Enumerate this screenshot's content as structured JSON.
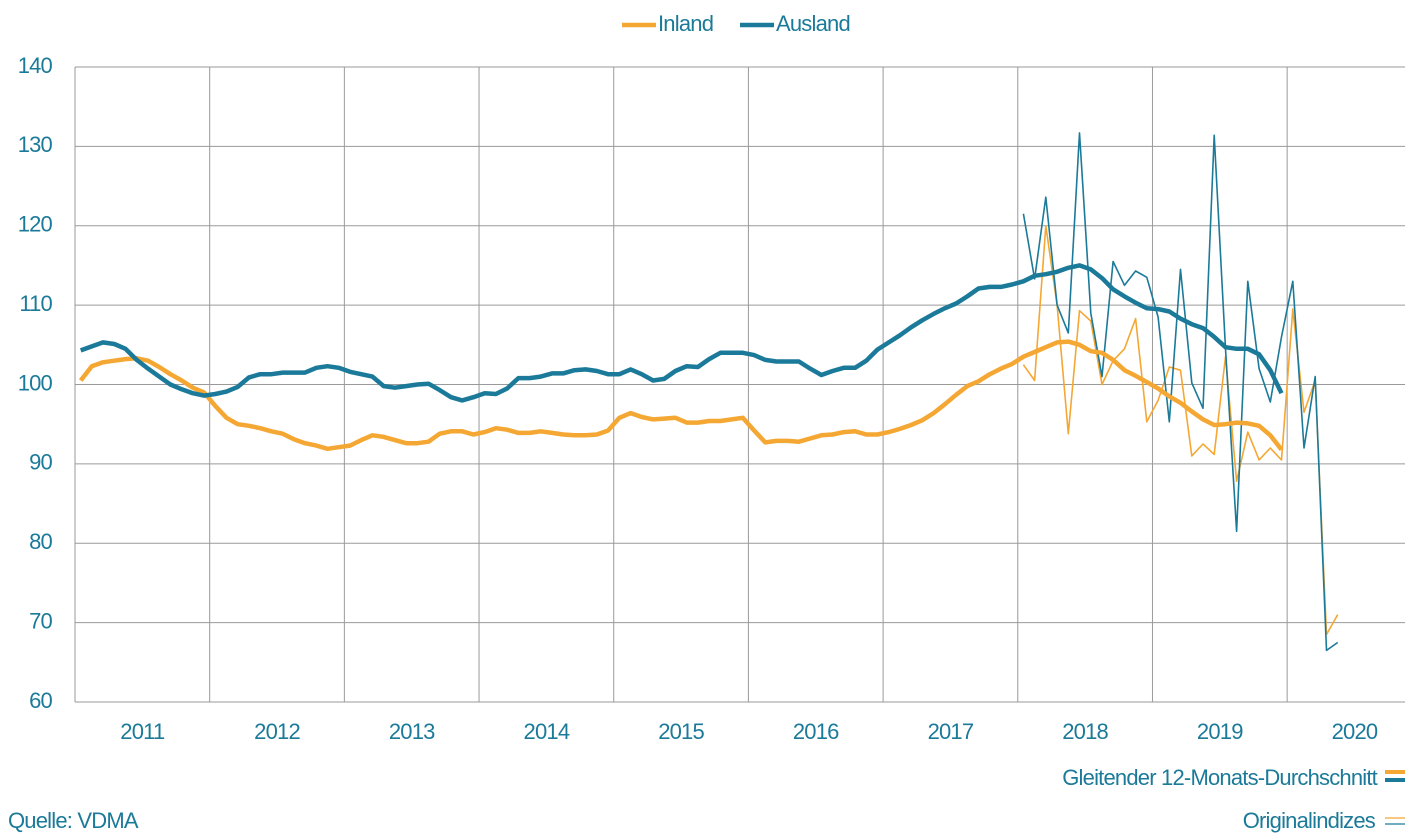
{
  "chart_data": {
    "type": "line",
    "series_label": "Gleitender 12-Monats-Durchschnitt",
    "source": "Quelle: VDMA",
    "xlim": [
      2011,
      2020.875
    ],
    "xticks": [
      2011,
      2012,
      2013,
      2014,
      2015,
      2016,
      2017,
      2018,
      2019,
      2020
    ],
    "ylim": [
      60,
      140
    ],
    "yticks": [
      60,
      70,
      80,
      90,
      100,
      110,
      120,
      130,
      140
    ],
    "grid": true,
    "x": [
      2011.042,
      2011.125,
      2011.208,
      2011.292,
      2011.375,
      2011.458,
      2011.542,
      2011.625,
      2011.708,
      2011.792,
      2011.875,
      2011.958,
      2012.042,
      2012.125,
      2012.208,
      2012.292,
      2012.375,
      2012.458,
      2012.542,
      2012.625,
      2012.708,
      2012.792,
      2012.875,
      2012.958,
      2013.042,
      2013.125,
      2013.208,
      2013.292,
      2013.375,
      2013.458,
      2013.542,
      2013.625,
      2013.708,
      2013.792,
      2013.875,
      2013.958,
      2014.042,
      2014.125,
      2014.208,
      2014.292,
      2014.375,
      2014.458,
      2014.542,
      2014.625,
      2014.708,
      2014.792,
      2014.875,
      2014.958,
      2015.042,
      2015.125,
      2015.208,
      2015.292,
      2015.375,
      2015.458,
      2015.542,
      2015.625,
      2015.708,
      2015.792,
      2015.875,
      2015.958,
      2016.042,
      2016.125,
      2016.208,
      2016.292,
      2016.375,
      2016.458,
      2016.542,
      2016.625,
      2016.708,
      2016.792,
      2016.875,
      2016.958,
      2017.042,
      2017.125,
      2017.208,
      2017.292,
      2017.375,
      2017.458,
      2017.542,
      2017.625,
      2017.708,
      2017.792,
      2017.875,
      2017.958,
      2018.042,
      2018.125,
      2018.208,
      2018.292,
      2018.375,
      2018.458,
      2018.542,
      2018.625,
      2018.708,
      2018.792,
      2018.875,
      2018.958,
      2019.042,
      2019.125,
      2019.208,
      2019.292,
      2019.375,
      2019.458,
      2019.542,
      2019.625,
      2019.708,
      2019.792,
      2019.875,
      2019.958
    ],
    "series": [
      {
        "name": "Inland",
        "color": "#f5a733",
        "values": [
          100.5,
          102.3,
          102.8,
          103.0,
          103.2,
          103.3,
          103.0,
          102.2,
          101.3,
          100.5,
          99.6,
          99.0,
          97.3,
          95.8,
          95.0,
          94.8,
          94.5,
          94.1,
          93.8,
          93.1,
          92.6,
          92.3,
          91.9,
          92.1,
          92.3,
          93.0,
          93.6,
          93.4,
          93.0,
          92.6,
          92.6,
          92.8,
          93.8,
          94.1,
          94.1,
          93.7,
          94.0,
          94.5,
          94.3,
          93.9,
          93.9,
          94.1,
          93.9,
          93.7,
          93.6,
          93.6,
          93.7,
          94.2,
          95.8,
          96.4,
          95.9,
          95.6,
          95.7,
          95.8,
          95.2,
          95.2,
          95.4,
          95.4,
          95.6,
          95.8,
          94.2,
          92.7,
          92.9,
          92.9,
          92.8,
          93.2,
          93.6,
          93.7,
          94.0,
          94.1,
          93.7,
          93.7,
          94.0,
          94.4,
          94.9,
          95.5,
          96.4,
          97.5,
          98.7,
          99.8,
          100.4,
          101.3,
          102.0,
          102.6,
          103.5,
          104.1,
          104.7,
          105.3,
          105.4,
          105.0,
          104.2,
          104.0,
          103.1,
          101.8,
          101.1,
          100.3,
          99.5,
          98.5,
          97.7,
          96.6,
          95.6,
          94.9,
          95.0,
          95.2,
          95.1,
          94.8,
          93.6,
          91.8
        ]
      },
      {
        "name": "Ausland",
        "color": "#1b7a99",
        "values": [
          104.3,
          104.8,
          105.3,
          105.1,
          104.5,
          103.1,
          102.0,
          101.0,
          100.0,
          99.4,
          98.9,
          98.6,
          98.8,
          99.1,
          99.7,
          100.9,
          101.3,
          101.3,
          101.5,
          101.5,
          101.5,
          102.1,
          102.3,
          102.1,
          101.6,
          101.3,
          101.0,
          99.8,
          99.6,
          99.8,
          100.0,
          100.1,
          99.3,
          98.4,
          98.0,
          98.4,
          98.9,
          98.8,
          99.5,
          100.8,
          100.8,
          101.0,
          101.4,
          101.4,
          101.8,
          101.9,
          101.7,
          101.3,
          101.3,
          101.9,
          101.3,
          100.5,
          100.7,
          101.7,
          102.3,
          102.2,
          103.2,
          104.0,
          104.0,
          104.0,
          103.7,
          103.1,
          102.9,
          102.9,
          102.9,
          102.0,
          101.2,
          101.7,
          102.1,
          102.1,
          103.0,
          104.4,
          105.3,
          106.2,
          107.2,
          108.1,
          108.9,
          109.6,
          110.2,
          111.1,
          112.1,
          112.3,
          112.3,
          112.6,
          113.0,
          113.7,
          113.9,
          114.2,
          114.7,
          115.0,
          114.5,
          113.4,
          112.0,
          111.1,
          110.3,
          109.6,
          109.5,
          109.2,
          108.3,
          107.6,
          107.1,
          106.0,
          104.7,
          104.5,
          104.5,
          103.8,
          101.8,
          98.9
        ]
      }
    ],
    "original": {
      "label": "Originalindizes",
      "x": [
        2018.042,
        2018.125,
        2018.208,
        2018.292,
        2018.375,
        2018.458,
        2018.542,
        2018.625,
        2018.708,
        2018.792,
        2018.875,
        2018.958,
        2019.042,
        2019.125,
        2019.208,
        2019.292,
        2019.375,
        2019.458,
        2019.542,
        2019.625,
        2019.708,
        2019.792,
        2019.875,
        2019.958,
        2020.042,
        2020.125,
        2020.208,
        2020.292,
        2020.375
      ],
      "series": [
        {
          "color": "#f5a733",
          "values": [
            102.5,
            100.5,
            120,
            110,
            93.8,
            109.3,
            108,
            100,
            103,
            104.5,
            108.3,
            95.3,
            98,
            102.2,
            101.8,
            91,
            92.5,
            91.2,
            103.5,
            87.8,
            94,
            90.5,
            92,
            90.5,
            109.5,
            96.5,
            100.5,
            68.5,
            71
          ]
        },
        {
          "color": "#1b7a99",
          "values": [
            121.5,
            113.3,
            123.6,
            110,
            106.5,
            131.7,
            109,
            101,
            115.5,
            112.5,
            114.3,
            113.5,
            108.5,
            95.3,
            114.5,
            100.2,
            97,
            131.4,
            104.5,
            81.5,
            113,
            102,
            97.8,
            106,
            113,
            92,
            101,
            66.5,
            67.5
          ]
        }
      ]
    }
  }
}
